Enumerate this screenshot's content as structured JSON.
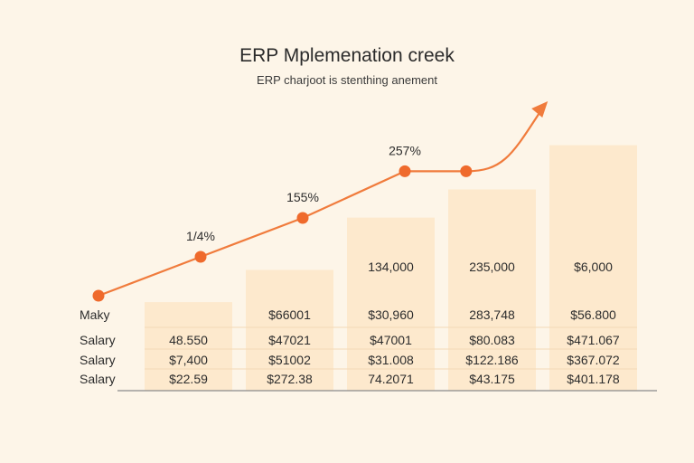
{
  "chart_data": {
    "type": "bar",
    "title": "ERP Mplemenation creek",
    "subtitle": "ERP charjoot is stenthing anement",
    "colors": {
      "background": "#fdf5e8",
      "bar": "#fde9cd",
      "line": "#f07b3c",
      "point": "#ef6a2c",
      "axis": "#8a8a8a"
    },
    "bars": [
      {
        "top_label": "",
        "height_value": 2.2
      },
      {
        "top_label": "",
        "height_value": 3.0
      },
      {
        "top_label": "134,000",
        "height_value": 4.3
      },
      {
        "top_label": "235,000",
        "height_value": 5.0
      },
      {
        "top_label": "$6,000",
        "height_value": 6.1
      }
    ],
    "table": {
      "row_labels": [
        "Maky",
        "Salary",
        "Salary",
        "Salary"
      ],
      "rows": [
        [
          "",
          "$66001",
          "$30,960",
          "283,748",
          "$56.800"
        ],
        [
          "48.550",
          "$47021",
          "$47001",
          "$80.083",
          "$471.067"
        ],
        [
          "$7,400",
          "$51002",
          "$31.008",
          "$122.186",
          "$367.072"
        ],
        [
          "$22.59",
          "$272.38",
          "74.2071",
          "$43.175",
          "$401.178"
        ]
      ]
    },
    "line": {
      "points": [
        {
          "x": 0,
          "y": 1.0,
          "label": ""
        },
        {
          "x": 1,
          "y": 2.0,
          "label": "1/4%"
        },
        {
          "x": 2,
          "y": 3.0,
          "label": "155%"
        },
        {
          "x": 3,
          "y": 4.2,
          "label": "257%"
        },
        {
          "x": 3.6,
          "y": 4.2,
          "label": ""
        }
      ],
      "arrow_end": {
        "x": 4.4,
        "y": 6.0
      }
    },
    "grid": false,
    "legend": "none"
  }
}
